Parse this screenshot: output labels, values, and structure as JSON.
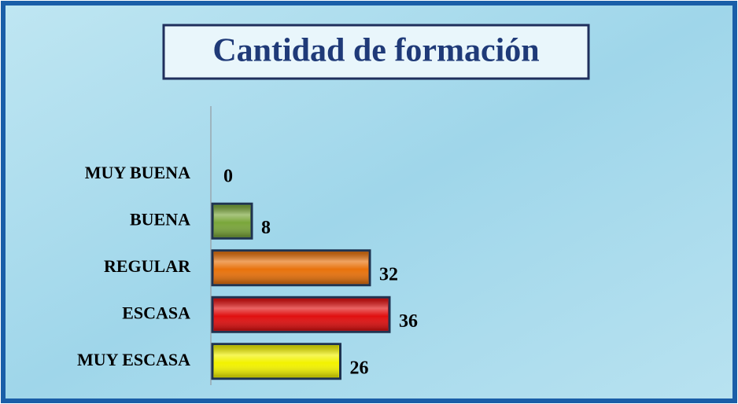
{
  "chart_data": {
    "type": "barh",
    "title": "Cantidad de formación",
    "categories": [
      "MUY BUENA",
      "BUENA",
      "REGULAR",
      "ESCASA",
      "MUY ESCASA"
    ],
    "values": [
      0,
      8,
      32,
      36,
      26
    ],
    "colors": [
      "#7aa63a",
      "#7aa63a",
      "#e8720c",
      "#e01010",
      "#f2f200"
    ]
  }
}
